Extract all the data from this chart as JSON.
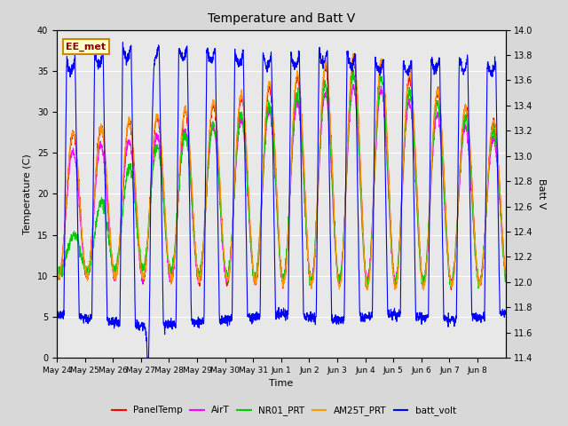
{
  "title": "Temperature and Batt V",
  "xlabel": "Time",
  "ylabel_left": "Temperature (C)",
  "ylabel_right": "Batt V",
  "annotation": "EE_met",
  "ylim_left": [
    0,
    40
  ],
  "ylim_right": [
    11.4,
    14.0
  ],
  "yticks_left": [
    0,
    5,
    10,
    15,
    20,
    25,
    30,
    35,
    40
  ],
  "yticks_right": [
    11.4,
    11.6,
    11.8,
    12.0,
    12.2,
    12.4,
    12.6,
    12.8,
    13.0,
    13.2,
    13.4,
    13.6,
    13.8,
    14.0
  ],
  "x_tick_labels": [
    "May 24",
    "May 25",
    "May 26",
    "May 27",
    "May 28",
    "May 29",
    "May 30",
    "May 31",
    "Jun 1",
    "Jun 2",
    "Jun 3",
    "Jun 4",
    "Jun 5",
    "Jun 6",
    "Jun 7",
    "Jun 8"
  ],
  "series_colors": {
    "PanelTemp": "#ff0000",
    "AirT": "#ff00ff",
    "NR01_PRT": "#00cc00",
    "AM25T_PRT": "#ff9900",
    "batt_volt": "#0000ff"
  },
  "bg_color": "#e8e8e8",
  "grid_color": "#ffffff",
  "num_days": 16,
  "pts_per_day": 144
}
